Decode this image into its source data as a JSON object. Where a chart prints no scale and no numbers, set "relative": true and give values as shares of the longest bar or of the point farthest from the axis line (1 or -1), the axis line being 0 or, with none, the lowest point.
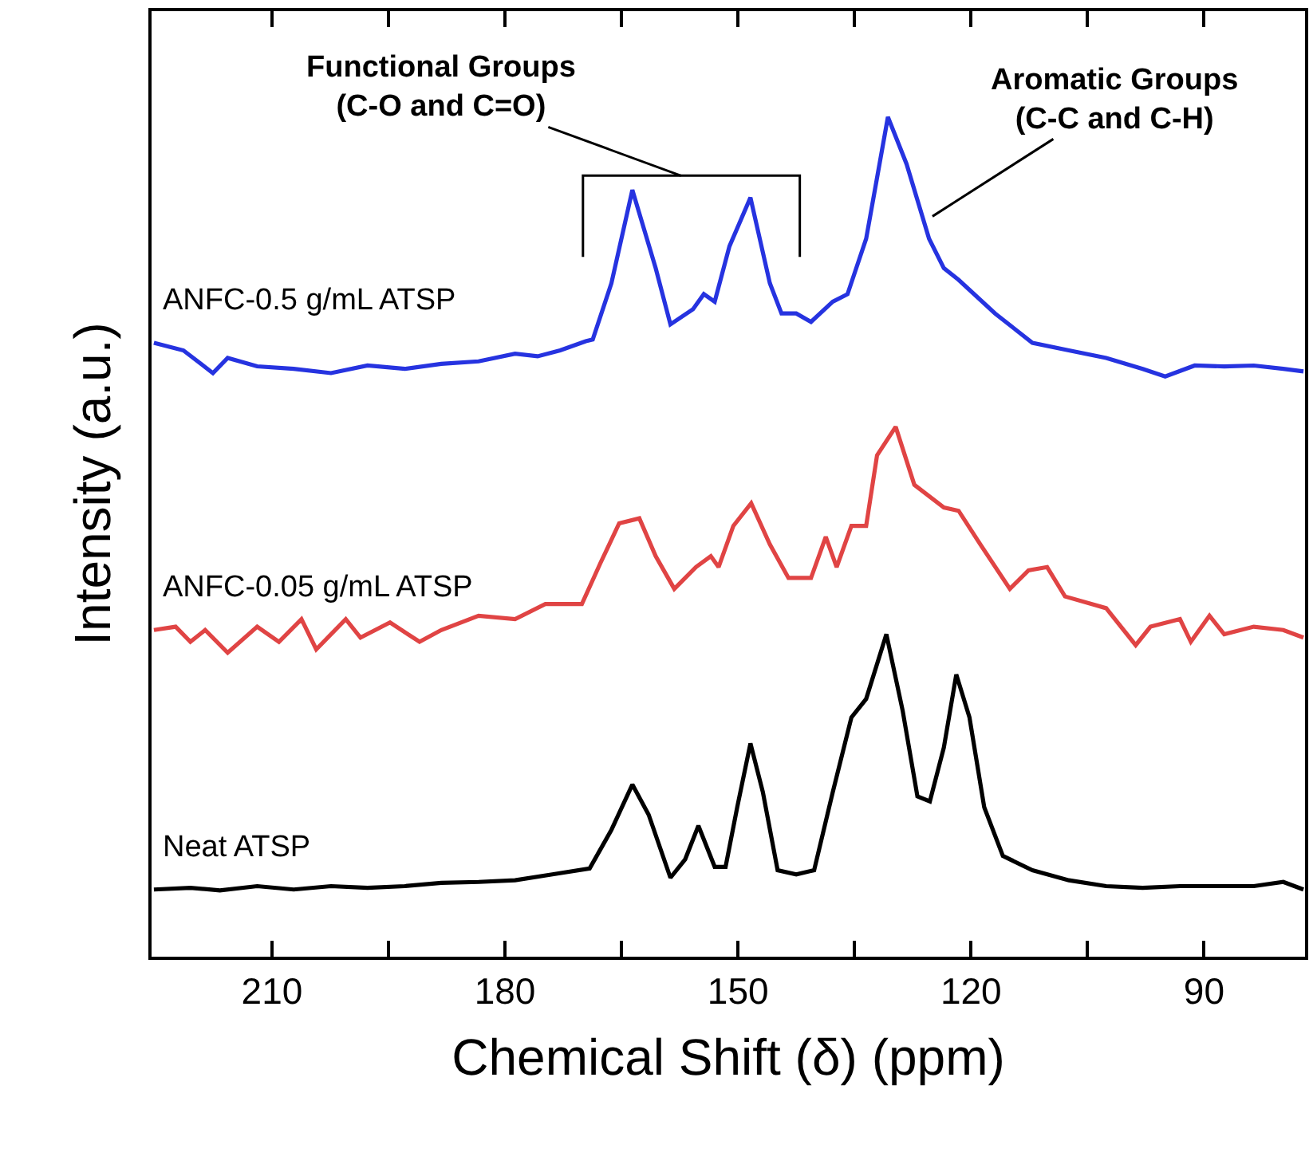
{
  "chart_data": {
    "type": "line",
    "relative": true,
    "xlabel": "Chemical Shift (δ) (ppm)",
    "ylabel": "Intensity (a.u.)",
    "marker": "none",
    "line_style": "solid",
    "xlim": [
      225.5,
      77
    ],
    "xticks": [
      210,
      {
        "value": 195,
        "label": null
      },
      180,
      {
        "value": 165,
        "label": null
      },
      150,
      {
        "value": 135,
        "label": null
      },
      120,
      {
        "value": 105,
        "label": null
      },
      90
    ],
    "annotations": [
      "Functional Groups\n(C-O and C=O)",
      "Aromatic Groups\n(C-C and C-H)"
    ],
    "series": [
      {
        "name": "ANFC-0.5 g/mL ATSP",
        "color": "#2633e0",
        "x": [
          225.2,
          221.4,
          217.6,
          215.7,
          211.9,
          207.2,
          202.4,
          197.7,
          192.9,
          188.2,
          183.4,
          178.7,
          175.8,
          172.9,
          169.6,
          168.7,
          166.3,
          163.6,
          160.6,
          158.7,
          155.8,
          154.4,
          153.0,
          151.1,
          148.4,
          145.9,
          144.4,
          142.5,
          140.6,
          137.8,
          135.9,
          133.5,
          130.7,
          128.3,
          125.4,
          123.5,
          121.6,
          116.9,
          112.1,
          107.4,
          102.6,
          97.9,
          95.0,
          91.2,
          87.4,
          83.6,
          79.8,
          77.2
        ],
        "values": [
          0.731,
          0.722,
          0.695,
          0.713,
          0.703,
          0.7,
          0.695,
          0.704,
          0.7,
          0.706,
          0.709,
          0.718,
          0.715,
          0.722,
          0.733,
          0.735,
          0.802,
          0.913,
          0.82,
          0.753,
          0.771,
          0.789,
          0.78,
          0.846,
          0.904,
          0.802,
          0.766,
          0.766,
          0.756,
          0.78,
          0.789,
          0.855,
          1.0,
          0.944,
          0.855,
          0.82,
          0.806,
          0.766,
          0.731,
          0.722,
          0.713,
          0.7,
          0.691,
          0.704,
          0.703,
          0.704,
          0.7,
          0.697
        ]
      },
      {
        "name": "ANFC-0.05 g/mL ATSP",
        "color": "#e04444",
        "x": [
          225.2,
          222.4,
          220.5,
          218.6,
          215.7,
          211.9,
          209.1,
          206.2,
          204.3,
          200.5,
          198.6,
          194.8,
          191.0,
          188.2,
          183.4,
          178.7,
          174.8,
          170.1,
          167.7,
          165.3,
          162.7,
          160.6,
          158.2,
          155.4,
          153.5,
          152.5,
          150.6,
          148.3,
          145.9,
          143.5,
          140.6,
          138.7,
          137.3,
          135.4,
          133.5,
          132.1,
          129.7,
          127.3,
          123.5,
          121.6,
          118.8,
          115.0,
          112.6,
          110.2,
          107.9,
          102.6,
          98.8,
          96.9,
          93.1,
          91.7,
          89.3,
          87.4,
          83.6,
          79.8,
          77.2
        ],
        "values": [
          0.389,
          0.393,
          0.375,
          0.389,
          0.362,
          0.393,
          0.375,
          0.402,
          0.366,
          0.402,
          0.38,
          0.398,
          0.375,
          0.389,
          0.406,
          0.402,
          0.42,
          0.42,
          0.469,
          0.516,
          0.522,
          0.477,
          0.438,
          0.464,
          0.477,
          0.464,
          0.513,
          0.54,
          0.491,
          0.451,
          0.451,
          0.5,
          0.464,
          0.513,
          0.513,
          0.597,
          0.631,
          0.562,
          0.535,
          0.531,
          0.491,
          0.438,
          0.46,
          0.464,
          0.429,
          0.415,
          0.371,
          0.393,
          0.402,
          0.375,
          0.406,
          0.384,
          0.393,
          0.389,
          0.38
        ]
      },
      {
        "name": "Neat ATSP",
        "color": "#000000",
        "x": [
          225.2,
          220.5,
          216.7,
          211.9,
          207.2,
          202.4,
          197.7,
          192.9,
          188.2,
          183.4,
          178.7,
          173.9,
          169.1,
          166.3,
          163.6,
          161.5,
          158.7,
          156.8,
          155.1,
          153.0,
          151.6,
          150.1,
          148.4,
          146.8,
          144.9,
          142.5,
          140.2,
          137.8,
          135.4,
          133.5,
          130.9,
          128.8,
          126.9,
          125.3,
          123.5,
          121.9,
          120.2,
          118.3,
          115.9,
          112.1,
          107.4,
          102.6,
          97.9,
          93.1,
          88.4,
          83.6,
          79.8,
          77.2
        ],
        "values": [
          0.08,
          0.082,
          0.079,
          0.084,
          0.08,
          0.084,
          0.082,
          0.084,
          0.088,
          0.089,
          0.091,
          0.098,
          0.105,
          0.151,
          0.205,
          0.169,
          0.094,
          0.116,
          0.156,
          0.107,
          0.107,
          0.178,
          0.254,
          0.196,
          0.103,
          0.098,
          0.103,
          0.196,
          0.285,
          0.307,
          0.384,
          0.293,
          0.191,
          0.185,
          0.249,
          0.336,
          0.285,
          0.178,
          0.12,
          0.103,
          0.091,
          0.084,
          0.082,
          0.084,
          0.084,
          0.084,
          0.089,
          0.08
        ]
      }
    ]
  }
}
